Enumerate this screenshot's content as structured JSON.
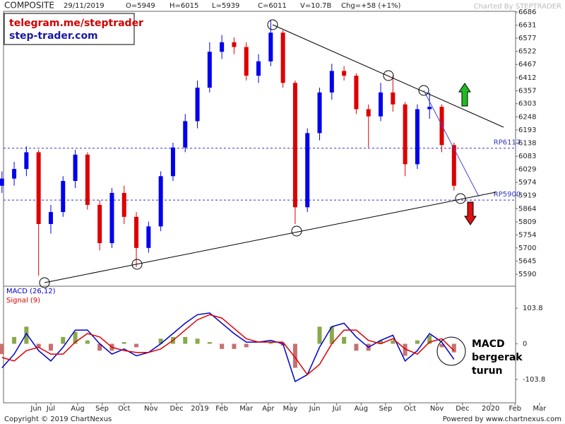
{
  "chart_data": [
    {
      "type": "candlestick",
      "title": "COMPOSITE",
      "header": [
        "29/11/2019",
        "O=5949",
        "H=6015",
        "L=5939",
        "C=6011",
        "V=10.7B",
        "Chg=+58 (+1%)"
      ],
      "credit": "Charted By STEPTRADER",
      "promo": [
        "telegram.me/steptrader",
        "step-trader.com"
      ],
      "x": [
        4.0,
        4.5,
        5.0,
        5.5,
        6.0,
        6.5,
        7.0,
        7.5,
        8.0,
        8.5,
        9.0,
        9.5,
        10.0,
        10.5,
        11.0,
        11.5,
        12.0,
        12.5,
        13.0,
        13.5,
        14.0,
        14.5,
        15.0,
        15.5,
        16.0,
        16.5,
        17.0,
        17.5,
        18.0,
        18.5,
        19.0,
        19.5,
        20.0,
        20.5,
        21.0,
        21.5,
        22.0,
        22.5
      ],
      "open": [
        5960,
        5990,
        6030,
        6100,
        5800,
        5850,
        5980,
        6090,
        5880,
        5720,
        5930,
        5830,
        5700,
        5790,
        6000,
        6120,
        6230,
        6370,
        6520,
        6560,
        6540,
        6420,
        6480,
        6600,
        6390,
        5870,
        6180,
        6350,
        6440,
        6420,
        6280,
        6250,
        6350,
        6300,
        6050,
        6280,
        6290,
        6130
      ],
      "high": [
        6020,
        6060,
        6125,
        6110,
        5880,
        6000,
        6110,
        6100,
        5900,
        5950,
        5960,
        5850,
        5810,
        6020,
        6140,
        6260,
        6400,
        6560,
        6590,
        6580,
        6560,
        6510,
        6650,
        6610,
        6400,
        6200,
        6370,
        6470,
        6460,
        6430,
        6300,
        6390,
        6420,
        6310,
        6300,
        6350,
        6300,
        6140
      ],
      "low": [
        5930,
        5960,
        6000,
        5584,
        5760,
        5830,
        5950,
        5860,
        5690,
        5700,
        5800,
        5620,
        5680,
        5770,
        5980,
        6100,
        6200,
        6350,
        6490,
        6510,
        6400,
        6390,
        6460,
        6370,
        5800,
        5850,
        6150,
        6320,
        6400,
        6260,
        6120,
        6230,
        6270,
        6000,
        6030,
        6240,
        6100,
        5940
      ],
      "close": [
        5990,
        6030,
        6100,
        5800,
        5850,
        5980,
        6090,
        5880,
        5720,
        5930,
        5830,
        5700,
        5790,
        6000,
        6120,
        6230,
        6370,
        6520,
        6560,
        6540,
        6420,
        6480,
        6600,
        6390,
        5870,
        6180,
        6350,
        6440,
        6420,
        6280,
        6250,
        6350,
        6300,
        6050,
        6280,
        6290,
        6130,
        5960
      ],
      "up_color": "#0000ee",
      "down_color": "#dd0000",
      "reference_lines": [
        {
          "label": "RP6117",
          "value": 6117
        },
        {
          "label": "RP5900",
          "value": 5900
        }
      ],
      "xlim": [
        3.92,
        25.02
      ],
      "ylim": [
        5540,
        6707
      ],
      "yticks": [
        6686,
        6631,
        6577,
        6522,
        6467,
        6412,
        6357,
        6303,
        6248,
        6193,
        6138,
        6083,
        6029,
        5974,
        5919,
        5864,
        5809,
        5754,
        5700,
        5645,
        5590
      ]
    },
    {
      "type": "macd",
      "x": [
        4.0,
        4.5,
        5.0,
        5.5,
        6.0,
        6.5,
        7.0,
        7.5,
        8.0,
        8.5,
        9.0,
        9.5,
        10.0,
        10.5,
        11.0,
        11.5,
        12.0,
        12.5,
        13.0,
        13.5,
        14.0,
        14.5,
        15.0,
        15.5,
        16.0,
        16.5,
        17.0,
        17.5,
        18.0,
        18.5,
        19.0,
        19.5,
        20.0,
        20.5,
        21.0,
        21.5,
        22.0,
        22.5
      ],
      "series": [
        {
          "name": "MACD (26,12)",
          "color": "#0000cc",
          "values": [
            -70,
            -30,
            30,
            -20,
            -50,
            -10,
            40,
            40,
            0,
            -30,
            -15,
            -35,
            -25,
            0,
            30,
            60,
            85,
            90,
            60,
            30,
            5,
            5,
            10,
            0,
            -110,
            -90,
            -10,
            50,
            60,
            20,
            -10,
            10,
            25,
            -50,
            -20,
            30,
            5,
            -45
          ]
        },
        {
          "name": "Signal (9)",
          "color": "#dd0000",
          "values": [
            -40,
            -50,
            -20,
            -10,
            -30,
            -30,
            5,
            30,
            20,
            -10,
            -20,
            -25,
            -25,
            -15,
            10,
            40,
            70,
            85,
            75,
            45,
            15,
            5,
            5,
            5,
            -40,
            -90,
            -60,
            0,
            40,
            40,
            10,
            0,
            15,
            -15,
            -30,
            5,
            15,
            -20
          ]
        }
      ],
      "histogram": {
        "values": [
          -30,
          20,
          50,
          -10,
          -20,
          20,
          35,
          10,
          -20,
          -20,
          5,
          -10,
          0,
          15,
          20,
          20,
          15,
          5,
          -15,
          -15,
          -10,
          0,
          5,
          -5,
          -70,
          0,
          50,
          50,
          20,
          -20,
          -20,
          10,
          10,
          -35,
          10,
          25,
          -10,
          -25
        ],
        "up_color": "#8aa84a",
        "down_color": "#c87070"
      },
      "annotation": [
        "MACD",
        "bergerak",
        "turun"
      ],
      "xlim": [
        3.92,
        25.02
      ],
      "ylim": [
        -172,
        168
      ],
      "yticks": [
        {
          "value": 103.8,
          "label": "103.8"
        },
        0,
        {
          "value": -103.8,
          "label": "-103.8"
        }
      ],
      "xticks": [
        {
          "value": 5.4,
          "label": "Jun"
        },
        {
          "value": 6.0,
          "label": "Jul"
        },
        {
          "value": 7.1,
          "label": "Aug"
        },
        {
          "value": 8.1,
          "label": "Sep"
        },
        {
          "value": 9.0,
          "label": "Oct"
        },
        {
          "value": 10.1,
          "label": "Nov"
        },
        {
          "value": 11.15,
          "label": "Dec"
        },
        {
          "value": 12.1,
          "label": "2019"
        },
        {
          "value": 13.0,
          "label": "Feb"
        },
        {
          "value": 14.0,
          "label": "Mar"
        },
        {
          "value": 14.9,
          "label": "Apr"
        },
        {
          "value": 15.8,
          "label": "May"
        },
        {
          "value": 16.8,
          "label": "Jun"
        },
        {
          "value": 17.7,
          "label": "Jul"
        },
        {
          "value": 18.7,
          "label": "Aug"
        },
        {
          "value": 19.7,
          "label": "Sep"
        },
        {
          "value": 20.7,
          "label": "Oct"
        },
        {
          "value": 21.8,
          "label": "Nov"
        },
        {
          "value": 22.85,
          "label": "Dec"
        },
        {
          "value": 24.0,
          "label": "2020"
        },
        {
          "value": 25.0,
          "label": "Feb"
        },
        {
          "value": 26.0,
          "label": "Mar"
        }
      ]
    }
  ],
  "footer": {
    "left": "Copyright © 2019 ChartNexus",
    "right": "Powered by www.chartnexus.com"
  }
}
